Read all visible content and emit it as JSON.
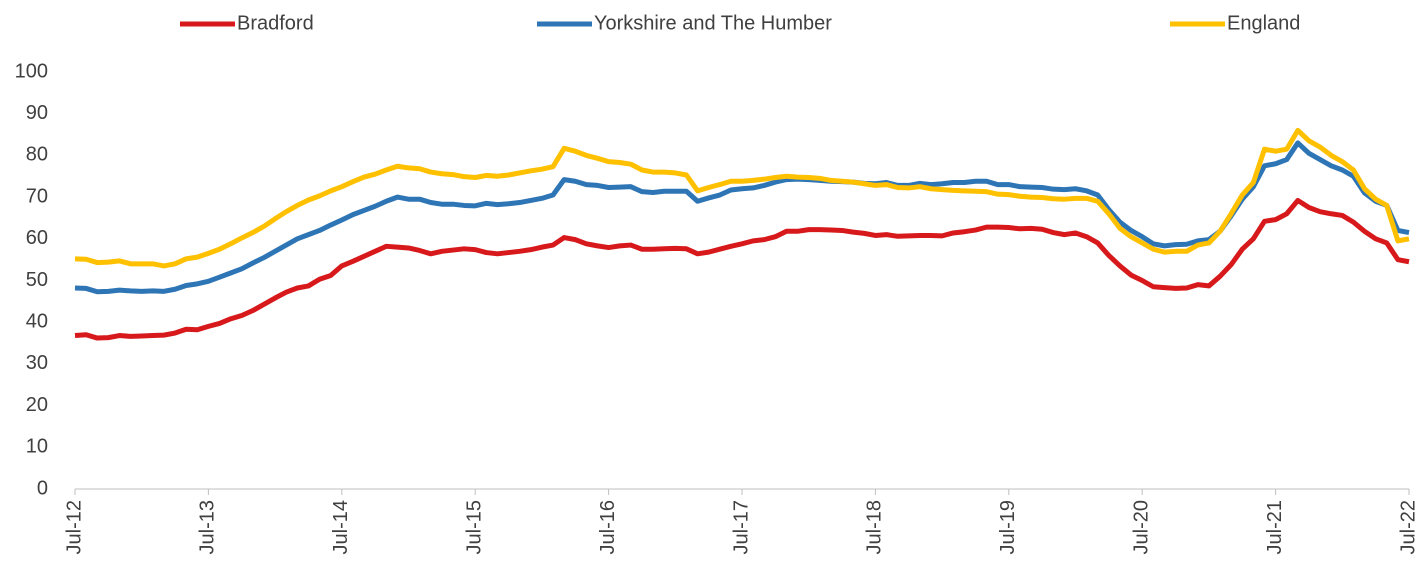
{
  "chart_data": {
    "type": "line",
    "categories": [
      "Jul-12",
      null,
      null,
      null,
      null,
      null,
      null,
      null,
      null,
      null,
      null,
      null,
      "Jul-13",
      null,
      null,
      null,
      null,
      null,
      null,
      null,
      null,
      null,
      null,
      null,
      "Jul-14",
      null,
      null,
      null,
      null,
      null,
      null,
      null,
      null,
      null,
      null,
      null,
      "Jul-15",
      null,
      null,
      null,
      null,
      null,
      null,
      null,
      null,
      null,
      null,
      null,
      "Jul-16",
      null,
      null,
      null,
      null,
      null,
      null,
      null,
      null,
      null,
      null,
      null,
      "Jul-17",
      null,
      null,
      null,
      null,
      null,
      null,
      null,
      null,
      null,
      null,
      null,
      "Jul-18",
      null,
      null,
      null,
      null,
      null,
      null,
      null,
      null,
      null,
      null,
      null,
      "Jul-19",
      null,
      null,
      null,
      null,
      null,
      null,
      null,
      null,
      null,
      null,
      null,
      "Jul-20",
      null,
      null,
      null,
      null,
      null,
      null,
      null,
      null,
      null,
      null,
      null,
      "Jul-21",
      null,
      null,
      null,
      null,
      null,
      null,
      null,
      null,
      null,
      null,
      null,
      "Jul-22"
    ],
    "series": [
      {
        "name": "Bradford",
        "color": "#d7191c",
        "values": [
          36.8,
          37.0,
          36.2,
          36.3,
          36.8,
          36.6,
          36.7,
          36.8,
          36.9,
          37.4,
          38.3,
          38.2,
          39.0,
          39.7,
          40.8,
          41.6,
          42.8,
          44.3,
          45.8,
          47.2,
          48.2,
          48.7,
          50.3,
          51.2,
          53.5,
          54.6,
          55.8,
          57.0,
          58.2,
          58.0,
          57.8,
          57.2,
          56.4,
          57.0,
          57.3,
          57.6,
          57.4,
          56.7,
          56.4,
          56.7,
          57.0,
          57.4,
          58.0,
          58.5,
          60.3,
          59.8,
          58.8,
          58.3,
          57.9,
          58.3,
          58.5,
          57.5,
          57.5,
          57.6,
          57.7,
          57.6,
          56.4,
          56.8,
          57.5,
          58.2,
          58.8,
          59.5,
          59.8,
          60.5,
          61.8,
          61.8,
          62.2,
          62.2,
          62.1,
          62.0,
          61.6,
          61.3,
          60.8,
          61.0,
          60.6,
          60.7,
          60.8,
          60.8,
          60.7,
          61.4,
          61.7,
          62.1,
          62.8,
          62.8,
          62.7,
          62.4,
          62.5,
          62.3,
          61.5,
          61.0,
          61.4,
          60.5,
          59.0,
          56.0,
          53.5,
          51.3,
          50.0,
          48.5,
          48.3,
          48.1,
          48.2,
          49.0,
          48.7,
          51.0,
          53.8,
          57.5,
          60.0,
          64.2,
          64.6,
          66.0,
          69.2,
          67.5,
          66.5,
          66.0,
          65.6,
          64.0,
          61.8,
          60.0,
          59.0,
          55.0,
          54.5
        ]
      },
      {
        "name": "Yorkshire and The Humber",
        "color": "#2e75b6",
        "values": [
          48.2,
          48.1,
          47.3,
          47.4,
          47.7,
          47.5,
          47.4,
          47.5,
          47.4,
          47.9,
          48.8,
          49.2,
          49.8,
          50.8,
          51.8,
          52.8,
          54.2,
          55.5,
          57.0,
          58.5,
          60.0,
          61.0,
          62.0,
          63.3,
          64.5,
          65.8,
          66.8,
          67.8,
          69.0,
          70.0,
          69.5,
          69.5,
          68.7,
          68.3,
          68.3,
          68.0,
          67.9,
          68.5,
          68.2,
          68.4,
          68.7,
          69.2,
          69.7,
          70.5,
          74.2,
          73.8,
          73.0,
          72.8,
          72.3,
          72.4,
          72.5,
          71.3,
          71.1,
          71.4,
          71.4,
          71.4,
          69.0,
          69.8,
          70.5,
          71.7,
          72.0,
          72.2,
          72.8,
          73.6,
          74.2,
          74.3,
          74.2,
          74.0,
          73.8,
          73.7,
          73.6,
          73.3,
          73.2,
          73.5,
          72.8,
          72.8,
          73.3,
          73.0,
          73.2,
          73.5,
          73.5,
          73.8,
          73.8,
          73.0,
          73.0,
          72.5,
          72.4,
          72.3,
          71.9,
          71.8,
          72.0,
          71.5,
          70.5,
          67.0,
          64.0,
          62.0,
          60.5,
          58.8,
          58.3,
          58.6,
          58.7,
          59.5,
          59.8,
          61.8,
          65.5,
          69.5,
          72.5,
          77.5,
          78.0,
          79.0,
          83.0,
          80.5,
          79.0,
          77.5,
          76.5,
          75.0,
          71.0,
          69.0,
          68.0,
          62.0,
          61.5
        ]
      },
      {
        "name": "England",
        "color": "#ffc000",
        "values": [
          55.2,
          55.1,
          54.3,
          54.4,
          54.7,
          54.0,
          54.0,
          54.0,
          53.5,
          54.0,
          55.2,
          55.6,
          56.5,
          57.5,
          58.8,
          60.2,
          61.5,
          63.0,
          64.8,
          66.5,
          68.0,
          69.3,
          70.3,
          71.5,
          72.5,
          73.7,
          74.8,
          75.5,
          76.5,
          77.4,
          77.0,
          76.8,
          76.0,
          75.6,
          75.4,
          74.9,
          74.7,
          75.2,
          75.0,
          75.3,
          75.8,
          76.3,
          76.7,
          77.3,
          81.7,
          81.0,
          80.0,
          79.3,
          78.5,
          78.3,
          77.9,
          76.5,
          76.0,
          76.0,
          75.8,
          75.3,
          71.5,
          72.3,
          73.0,
          73.8,
          73.8,
          74.0,
          74.3,
          74.7,
          75.0,
          74.8,
          74.7,
          74.5,
          74.0,
          73.8,
          73.6,
          73.2,
          72.8,
          73.0,
          72.3,
          72.2,
          72.5,
          72.0,
          71.8,
          71.6,
          71.5,
          71.4,
          71.3,
          70.7,
          70.6,
          70.2,
          70.0,
          69.9,
          69.6,
          69.5,
          69.7,
          69.7,
          69.0,
          66.0,
          62.5,
          60.5,
          59.0,
          57.5,
          56.8,
          57.0,
          57.0,
          58.5,
          59.0,
          61.8,
          66.0,
          70.5,
          73.5,
          81.5,
          81.0,
          81.5,
          86.0,
          83.5,
          82.0,
          80.0,
          78.5,
          76.5,
          72.0,
          69.5,
          68.0,
          59.5,
          60.0
        ]
      }
    ],
    "ylim": [
      0,
      100
    ],
    "yticks": [
      0,
      10,
      20,
      30,
      40,
      50,
      60,
      70,
      80,
      90,
      100
    ],
    "grid": false,
    "legend": "top"
  }
}
